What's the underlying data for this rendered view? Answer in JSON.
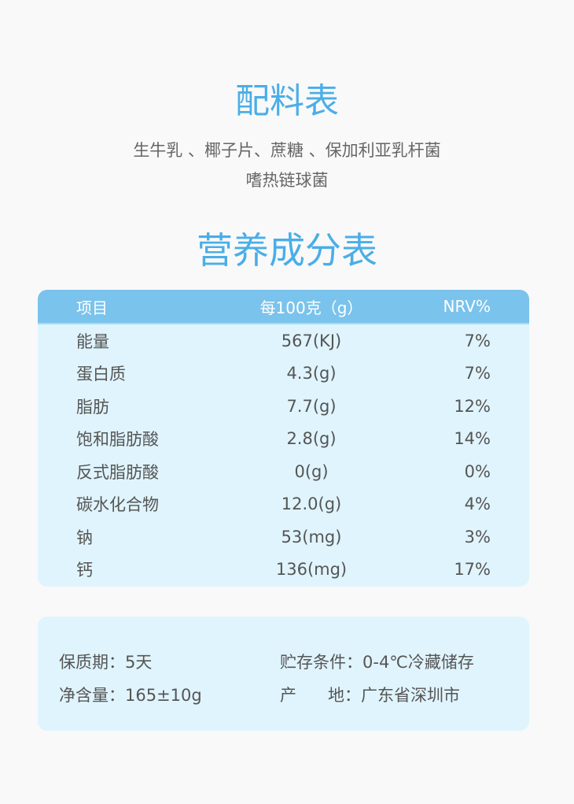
{
  "ingredients": {
    "title": "配料表",
    "line1": "生牛乳 、椰子片、蔗糖 、保加利亚乳杆菌",
    "line2": "嗜热链球菌"
  },
  "nutrition": {
    "title": "营养成分表",
    "headers": [
      "项目",
      "每100克（g）",
      "NRV%"
    ],
    "rows": [
      {
        "item": "能量",
        "amount": "567(KJ)",
        "nrv": "7%"
      },
      {
        "item": "蛋白质",
        "amount": "4.3(g)",
        "nrv": "7%"
      },
      {
        "item": "脂肪",
        "amount": "7.7(g)",
        "nrv": "12%"
      },
      {
        "item": "饱和脂肪酸",
        "amount": "2.8(g)",
        "nrv": "14%"
      },
      {
        "item": "反式脂肪酸",
        "amount": "0(g)",
        "nrv": "0%"
      },
      {
        "item": "碳水化合物",
        "amount": "12.0(g)",
        "nrv": "4%"
      },
      {
        "item": "钠",
        "amount": "53(mg)",
        "nrv": "3%"
      },
      {
        "item": "钙",
        "amount": "136(mg)",
        "nrv": "17%"
      }
    ]
  },
  "info": {
    "shelf_life": "保质期：5天",
    "storage": "贮存条件：0-4℃冷藏储存",
    "net_content": "净含量：165±10g",
    "origin": "产      地：广东省深圳市"
  },
  "colors": {
    "accent": "#4aaee8",
    "header": "#7ac3ec",
    "panel": "#e0f4fd"
  }
}
